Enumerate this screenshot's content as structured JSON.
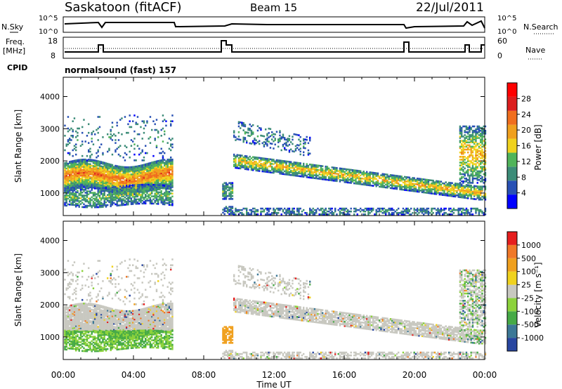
{
  "header": {
    "station": "Saskatoon (fitACF)",
    "beam": "Beam 15",
    "date": "22/Jul/2011"
  },
  "params": {
    "nsky_label": "N.Sky",
    "nsky_ticks": [
      "10^5",
      "10^0"
    ],
    "nsearch_label": "N.Search",
    "nsearch_ticks": [
      "10^5",
      "10^0"
    ],
    "freq_label_1": "Freq.",
    "freq_label_2": "[MHz]",
    "freq_ticks": [
      "18",
      "8"
    ],
    "nave_label": "Nave",
    "nave_ticks": [
      "60",
      "0"
    ],
    "cpid_label": "CPID",
    "cpid_name": "normalsound (fast) 157"
  },
  "colors": {
    "power": [
      "#0000ff",
      "#2850b4",
      "#3c8c78",
      "#50b45a",
      "#f0d21e",
      "#f0a01e",
      "#f06e1e",
      "#dc1e1e",
      "#ff0000"
    ],
    "velocity": [
      "#2846a0",
      "#3c7896",
      "#46aa46",
      "#8cd23c",
      "#c8c8c0",
      "#f0d21e",
      "#f0a01e",
      "#f07828",
      "#e61e1e"
    ]
  },
  "chart_data": [
    {
      "type": "heatmap",
      "panel": "power",
      "ylabel": "Slant Range [km]",
      "yticks": [
        1000,
        2000,
        3000,
        4000
      ],
      "ylim": [
        300,
        4600
      ],
      "xlabel": "Time UT",
      "xticks": [
        "00:00",
        "04:00",
        "08:00",
        "12:00",
        "16:00",
        "20:00",
        "00:00"
      ],
      "xlim_hours": [
        0,
        24
      ],
      "colorbar_label": "Power [dB]",
      "colorbar_ticks": [
        "28",
        "24",
        "20",
        "16",
        "12",
        "8",
        "4"
      ],
      "gap_hours": [
        6.2,
        9.0
      ]
    },
    {
      "type": "heatmap",
      "panel": "velocity",
      "ylabel": "Slant Range [km]",
      "yticks": [
        1000,
        2000,
        3000,
        4000
      ],
      "ylim": [
        300,
        4600
      ],
      "xlabel": "Time UT",
      "xticks": [
        "00:00",
        "04:00",
        "08:00",
        "12:00",
        "16:00",
        "20:00",
        "00:00"
      ],
      "xlim_hours": [
        0,
        24
      ],
      "colorbar_label": "Velocity [m s⁻¹]",
      "colorbar_ticks": [
        "1000",
        "500",
        "100",
        "25",
        "-25",
        "-100",
        "-500",
        "-1000"
      ],
      "gap_hours": [
        6.2,
        9.0
      ]
    }
  ]
}
